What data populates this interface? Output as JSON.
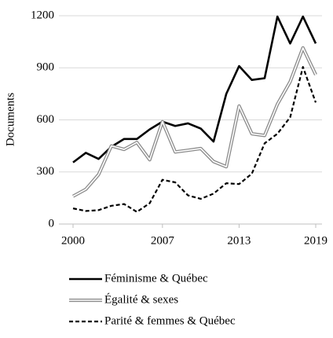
{
  "chart_data": {
    "type": "line",
    "y_label": "Documents",
    "x": [
      2000,
      2001,
      2002,
      2003,
      2004,
      2005,
      2006,
      2007,
      2008,
      2009,
      2010,
      2011,
      2012,
      2013,
      2014,
      2015,
      2016,
      2017,
      2018,
      2019
    ],
    "xlim": [
      2000,
      2019
    ],
    "xticks": [
      2000,
      2007,
      2013,
      2019
    ],
    "ylim": [
      0,
      1200
    ],
    "yticks": [
      0,
      300,
      600,
      900,
      1200
    ],
    "grid": true,
    "legend": "bottom",
    "series": [
      {
        "name": "Féminisme & Québec",
        "color": "#000000",
        "style": "solid",
        "values": [
          355,
          410,
          375,
          445,
          490,
          490,
          545,
          590,
          565,
          580,
          550,
          475,
          750,
          910,
          830,
          840,
          1195,
          1040,
          1195,
          1040
        ]
      },
      {
        "name": "Égalité & sexes",
        "color": "#8c8c8c",
        "style": "double",
        "values": [
          160,
          200,
          285,
          450,
          430,
          470,
          370,
          590,
          415,
          425,
          435,
          360,
          330,
          680,
          520,
          510,
          690,
          820,
          1015,
          860
        ]
      },
      {
        "name": "Parité & femmes & Québec",
        "color": "#000000",
        "style": "dash",
        "values": [
          90,
          75,
          80,
          105,
          115,
          70,
          120,
          255,
          240,
          165,
          145,
          175,
          235,
          230,
          290,
          465,
          520,
          615,
          905,
          700
        ]
      }
    ]
  }
}
